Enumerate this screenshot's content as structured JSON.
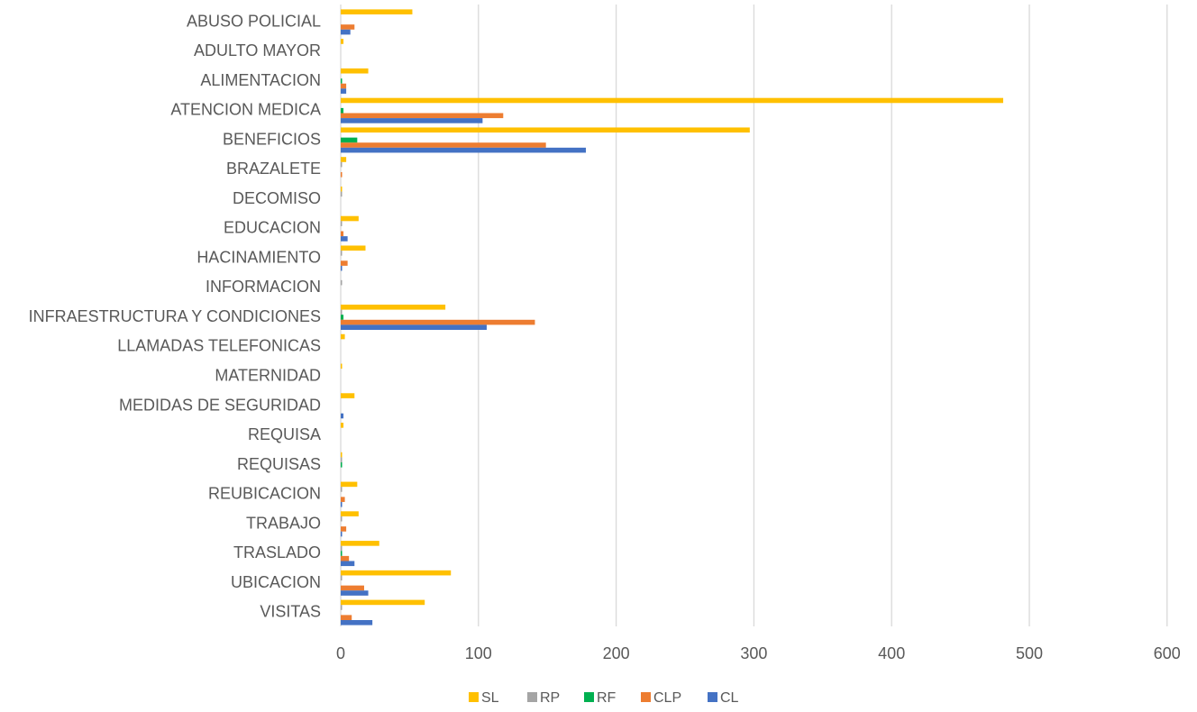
{
  "chart_data": {
    "type": "bar",
    "orientation": "horizontal",
    "title": "",
    "xlabel": "",
    "ylabel": "",
    "xlim": [
      0,
      600
    ],
    "x_ticks": [
      0,
      100,
      200,
      300,
      400,
      500,
      600
    ],
    "grid": true,
    "legend_position": "bottom",
    "categories": [
      "ABUSO POLICIAL",
      "ADULTO MAYOR",
      "ALIMENTACION",
      "ATENCION MEDICA",
      "BENEFICIOS",
      "BRAZALETE",
      "DECOMISO",
      "EDUCACION",
      "HACINAMIENTO",
      "INFORMACION",
      "INFRAESTRUCTURA Y CONDICIONES",
      "LLAMADAS TELEFONICAS",
      "MATERNIDAD",
      "MEDIDAS DE SEGURIDAD",
      "REQUISA",
      "REQUISAS",
      "REUBICACION",
      "TRABAJO",
      "TRASLADO",
      "UBICACION",
      "VISITAS"
    ],
    "series": [
      {
        "name": "SL",
        "color": "#FFC000",
        "values": [
          52,
          2,
          20,
          481,
          297,
          4,
          1,
          13,
          18,
          0,
          76,
          3,
          1,
          10,
          2,
          1,
          12,
          13,
          28,
          80,
          61
        ]
      },
      {
        "name": "RP",
        "color": "#A5A5A5",
        "values": [
          0,
          0,
          0,
          0,
          0,
          1,
          1,
          1,
          1,
          1,
          1,
          0,
          0,
          0,
          0,
          1,
          1,
          1,
          1,
          1,
          1
        ]
      },
      {
        "name": "RF",
        "color": "#00B050",
        "values": [
          0,
          0,
          1,
          2,
          12,
          0,
          0,
          0,
          0,
          0,
          2,
          0,
          0,
          0,
          0,
          1,
          0,
          0,
          1,
          0,
          0
        ]
      },
      {
        "name": "CLP",
        "color": "#ED7D31",
        "values": [
          10,
          0,
          4,
          118,
          149,
          1,
          0,
          2,
          5,
          0,
          141,
          0,
          0,
          0,
          0,
          0,
          3,
          4,
          6,
          17,
          8
        ]
      },
      {
        "name": "CL",
        "color": "#4472C4",
        "values": [
          7,
          0,
          4,
          103,
          178,
          0,
          0,
          5,
          1,
          0,
          106,
          0,
          0,
          2,
          0,
          0,
          1,
          1,
          10,
          20,
          23
        ]
      }
    ]
  }
}
